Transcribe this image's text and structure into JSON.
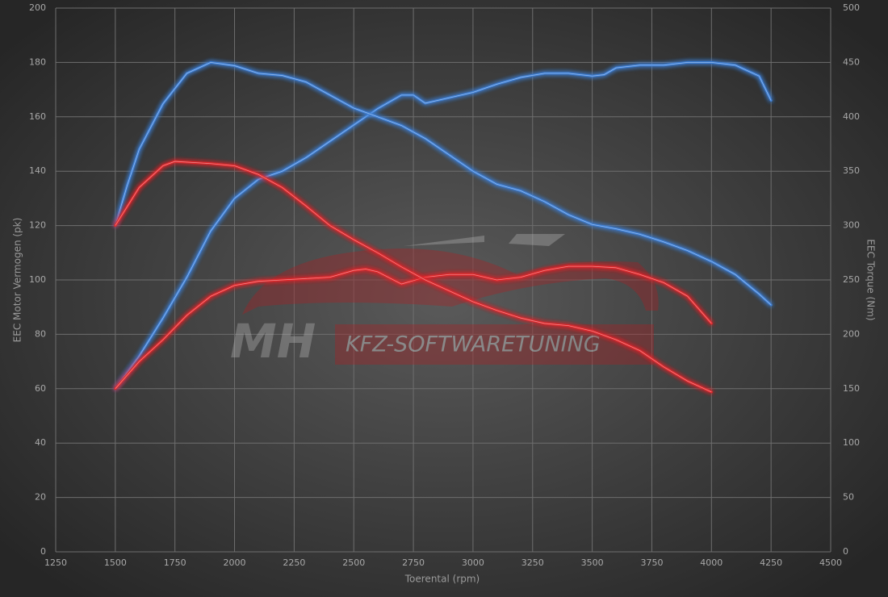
{
  "chart_data": {
    "type": "line",
    "x_label": "Toerental (rpm)",
    "y_label": "EEC Motor Vermogen (pk)",
    "y2_label": "EEC Torque (Nm)",
    "annotations": [
      "MH",
      "KFZ-SOFTWARETUNING"
    ],
    "xlim": [
      1250,
      4500
    ],
    "xticks": [
      1250,
      1500,
      1750,
      2000,
      2250,
      2500,
      2750,
      3000,
      3250,
      3500,
      3750,
      4000,
      4250,
      4500
    ],
    "ylim": [
      0,
      200
    ],
    "yticks": [
      0,
      20,
      40,
      60,
      80,
      100,
      120,
      140,
      160,
      180,
      200
    ],
    "y2lim": [
      0,
      500
    ],
    "y2ticks": [
      0,
      50,
      100,
      150,
      200,
      250,
      300,
      350,
      400,
      450,
      500
    ],
    "grid": true,
    "series": [
      {
        "color": "#3d7fd6",
        "axis": "y",
        "x": [
          1500,
          1600,
          1700,
          1800,
          1900,
          2000,
          2100,
          2200,
          2300,
          2400,
          2500,
          2600,
          2700,
          2750,
          2800,
          2900,
          3000,
          3100,
          3200,
          3300,
          3400,
          3500,
          3550,
          3600,
          3700,
          3800,
          3900,
          4000,
          4100,
          4200,
          4250
        ],
        "values": [
          60,
          72,
          86,
          101,
          118,
          130,
          137,
          140,
          145,
          151,
          157,
          163,
          168,
          168,
          165,
          167,
          169,
          172,
          174.5,
          176,
          176,
          175,
          175.5,
          178,
          179,
          179,
          180,
          180,
          179,
          175,
          166
        ]
      },
      {
        "color": "#3d7fd6",
        "axis": "y2",
        "x": [
          1500,
          1550,
          1600,
          1700,
          1800,
          1900,
          2000,
          2100,
          2200,
          2300,
          2400,
          2500,
          2600,
          2700,
          2800,
          2900,
          3000,
          3100,
          3200,
          3300,
          3400,
          3500,
          3600,
          3700,
          3800,
          3900,
          4000,
          4100,
          4200,
          4250
        ],
        "values": [
          300,
          337,
          370,
          412,
          440,
          450,
          447,
          440,
          438,
          432,
          420,
          408,
          400,
          392,
          380,
          365,
          350,
          338,
          332,
          322,
          310,
          301,
          297,
          292,
          285,
          277,
          267,
          255,
          237,
          227
        ]
      },
      {
        "color": "#e0262b",
        "axis": "y",
        "x": [
          1500,
          1600,
          1700,
          1800,
          1900,
          2000,
          2100,
          2200,
          2300,
          2400,
          2500,
          2550,
          2600,
          2700,
          2800,
          2900,
          3000,
          3100,
          3200,
          3300,
          3400,
          3500,
          3600,
          3700,
          3800,
          3900,
          3950,
          4000
        ],
        "values": [
          60,
          70,
          78,
          87,
          94,
          98,
          99.5,
          100,
          100.5,
          101,
          103.5,
          104,
          103,
          98.5,
          101,
          102,
          102,
          100,
          101,
          103.5,
          105,
          105,
          104.5,
          102,
          99,
          94,
          89,
          84
        ]
      },
      {
        "color": "#e0262b",
        "axis": "y2",
        "x": [
          1500,
          1600,
          1700,
          1750,
          1900,
          2000,
          2100,
          2200,
          2300,
          2400,
          2500,
          2600,
          2700,
          2800,
          2900,
          3000,
          3100,
          3200,
          3300,
          3400,
          3500,
          3600,
          3700,
          3800,
          3900,
          4000
        ],
        "values": [
          300,
          335,
          355,
          359,
          357,
          355,
          347,
          335,
          318,
          300,
          287,
          275,
          262,
          250,
          240,
          230,
          222,
          215,
          210,
          208,
          203,
          195,
          185,
          170,
          157,
          147
        ]
      }
    ]
  }
}
